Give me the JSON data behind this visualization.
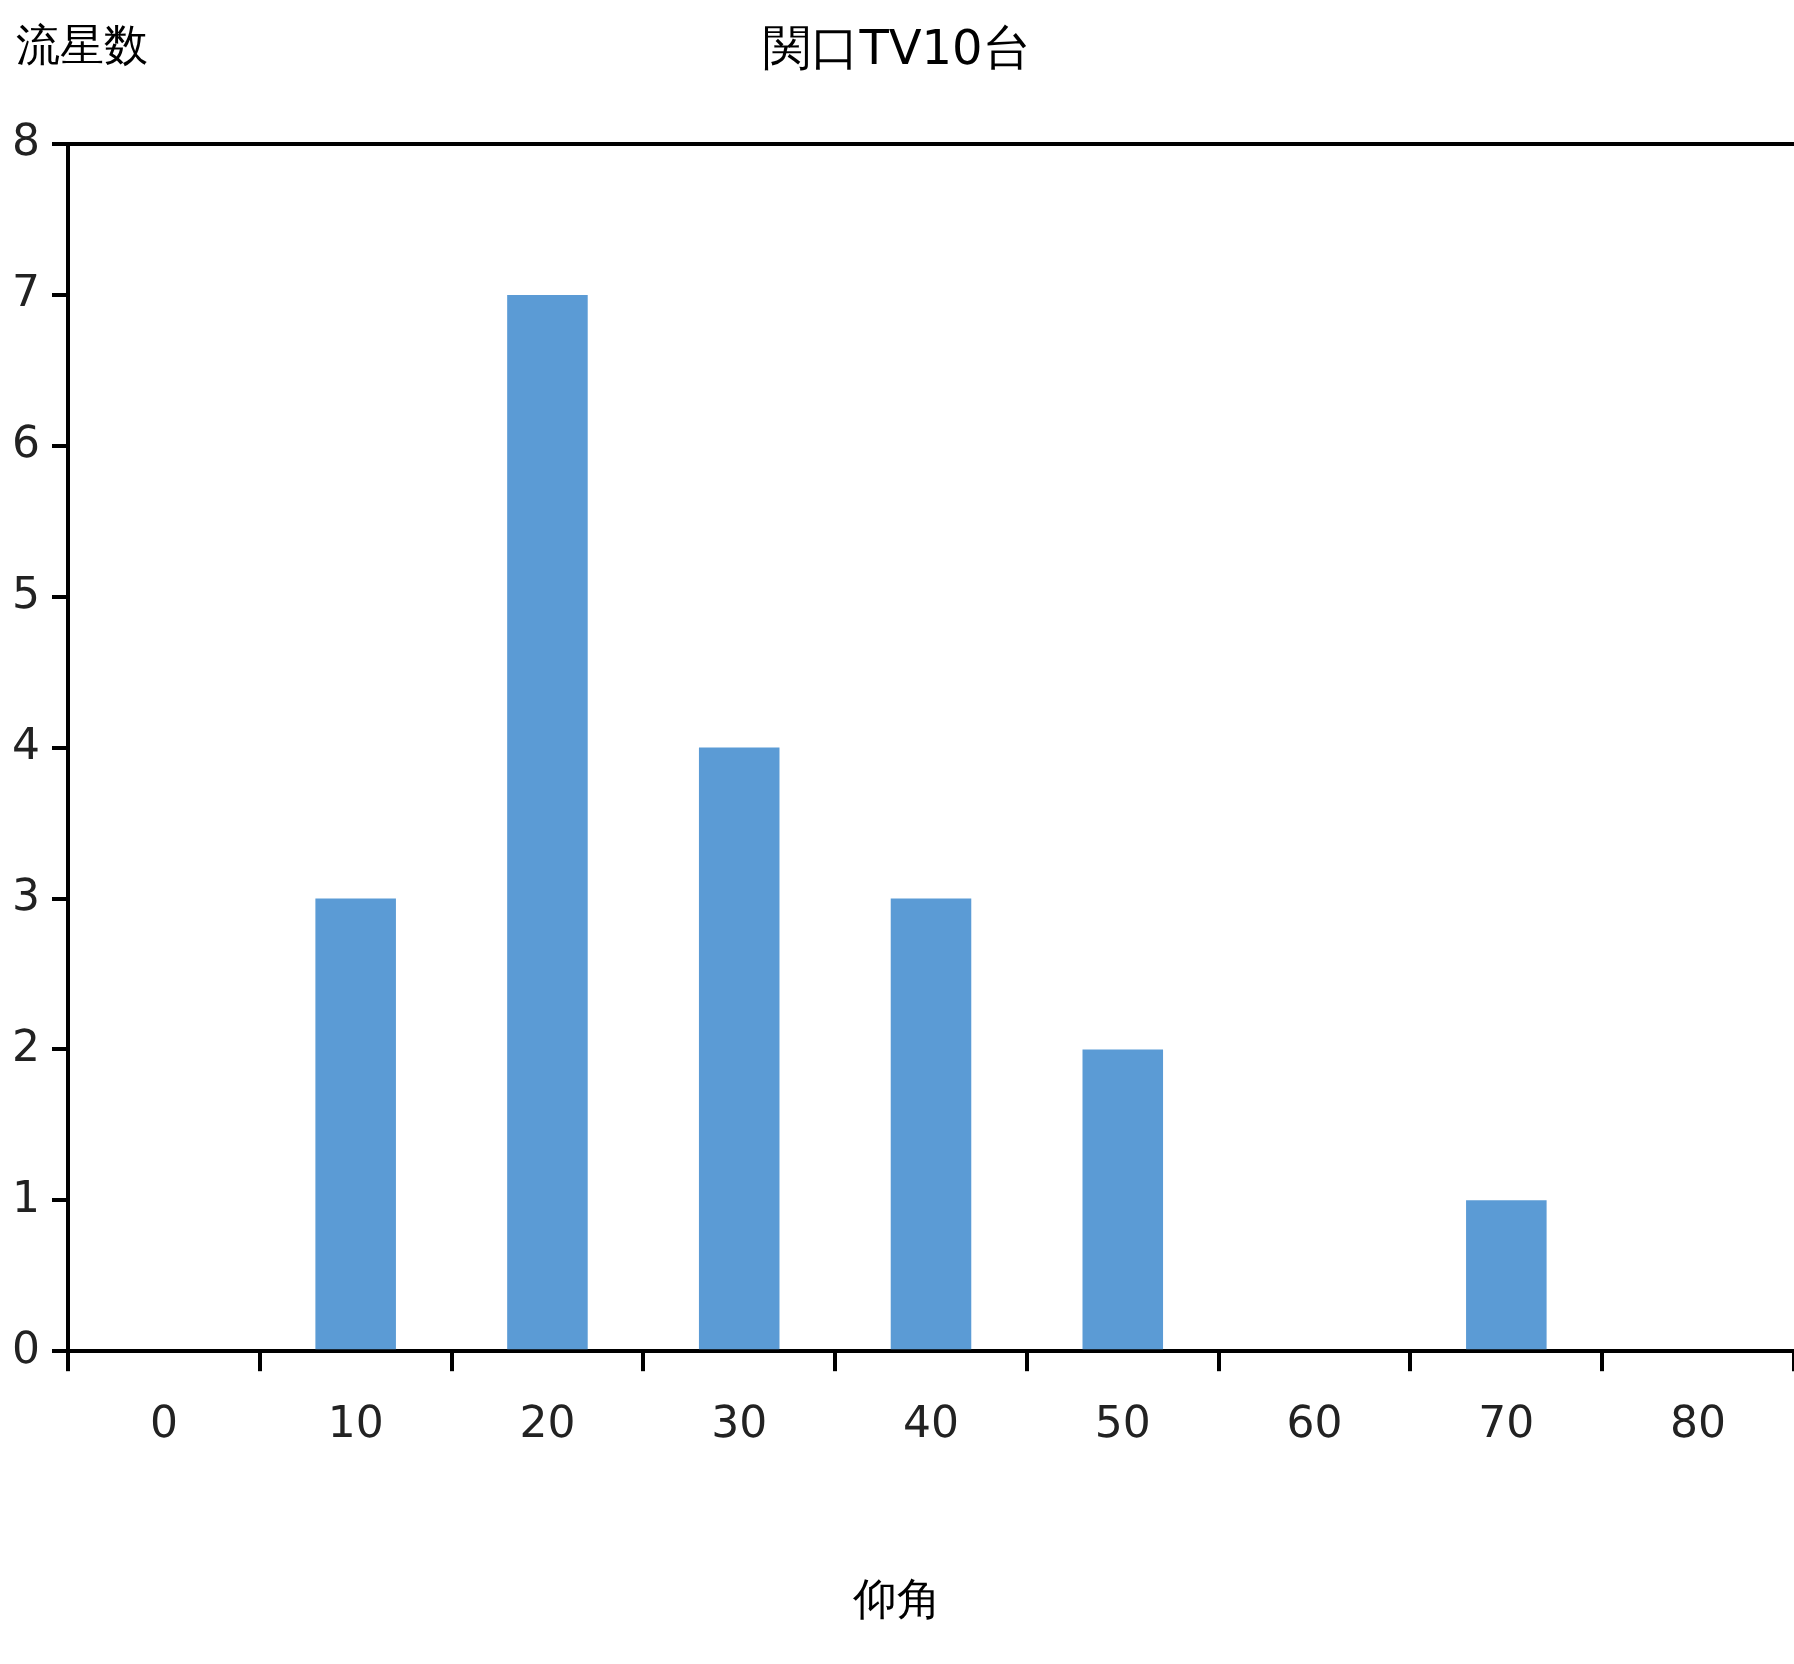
{
  "chart_data": {
    "type": "bar",
    "title": "関口TV10台",
    "xlabel": "仰角",
    "ylabel": "流星数",
    "categories": [
      "0",
      "10",
      "20",
      "30",
      "40",
      "50",
      "60",
      "70",
      "80"
    ],
    "values": [
      0,
      3,
      7,
      4,
      3,
      2,
      0,
      1,
      0
    ],
    "color": "#5b9bd5",
    "ylim": [
      0,
      8
    ],
    "yticks": [
      0,
      1,
      2,
      3,
      4,
      5,
      6,
      7,
      8
    ],
    "grid": false,
    "legend": false
  }
}
